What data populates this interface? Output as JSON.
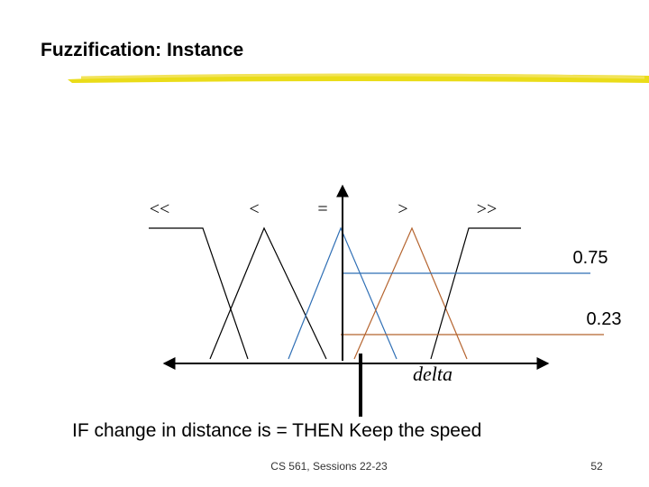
{
  "header": {
    "title": "Fuzzification: Instance"
  },
  "diagram": {
    "sets": [
      "<<",
      "<",
      "=",
      ">",
      ">>"
    ],
    "memberships": [
      "0.75",
      "0.23"
    ],
    "axis_label": "delta"
  },
  "rule": "IF change in distance is = THEN Keep the speed",
  "footer": {
    "course": "CS 561,  Sessions 22-23",
    "page_number": "52"
  }
}
